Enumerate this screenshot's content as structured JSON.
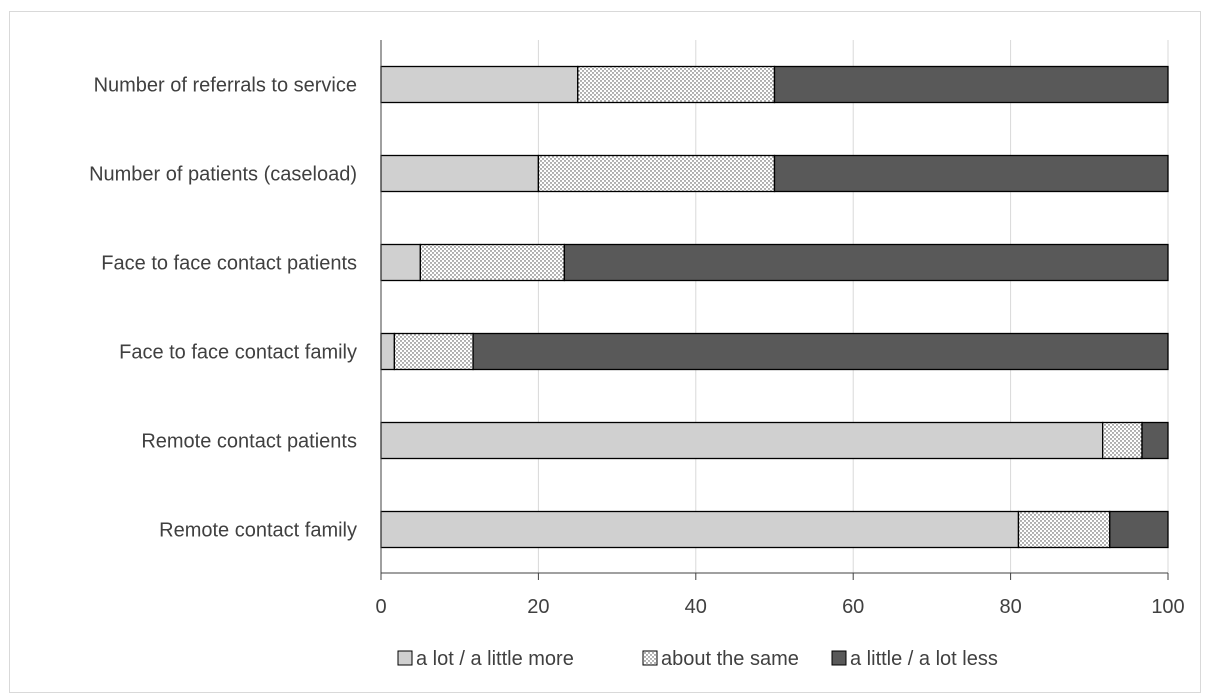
{
  "chart_data": {
    "type": "bar",
    "orientation": "horizontal",
    "stacked": true,
    "categories": [
      "Number of referrals to service",
      "Number of patients (caseload)",
      "Face to face contact patients",
      "Face to face contact family",
      "Remote contact patients",
      "Remote contact family"
    ],
    "series": [
      {
        "name": "a lot / a little more",
        "values": [
          25,
          20,
          5,
          1.7,
          91.7,
          81
        ],
        "color": "#d0d0d0",
        "pattern": "solid"
      },
      {
        "name": "about the same",
        "values": [
          25,
          30,
          18.3,
          10,
          5,
          11.6
        ],
        "color": "#ffffff",
        "pattern": "dots"
      },
      {
        "name": "a little / a lot less",
        "values": [
          50,
          50,
          76.7,
          88.3,
          3.3,
          7.4
        ],
        "color": "#595959",
        "pattern": "solid"
      }
    ],
    "xlim": [
      0,
      100
    ],
    "xticks": [
      "0",
      "20",
      "40",
      "60",
      "80",
      "100"
    ],
    "grid": true,
    "legend_position": "bottom",
    "title": "",
    "xlabel": "",
    "ylabel": ""
  }
}
